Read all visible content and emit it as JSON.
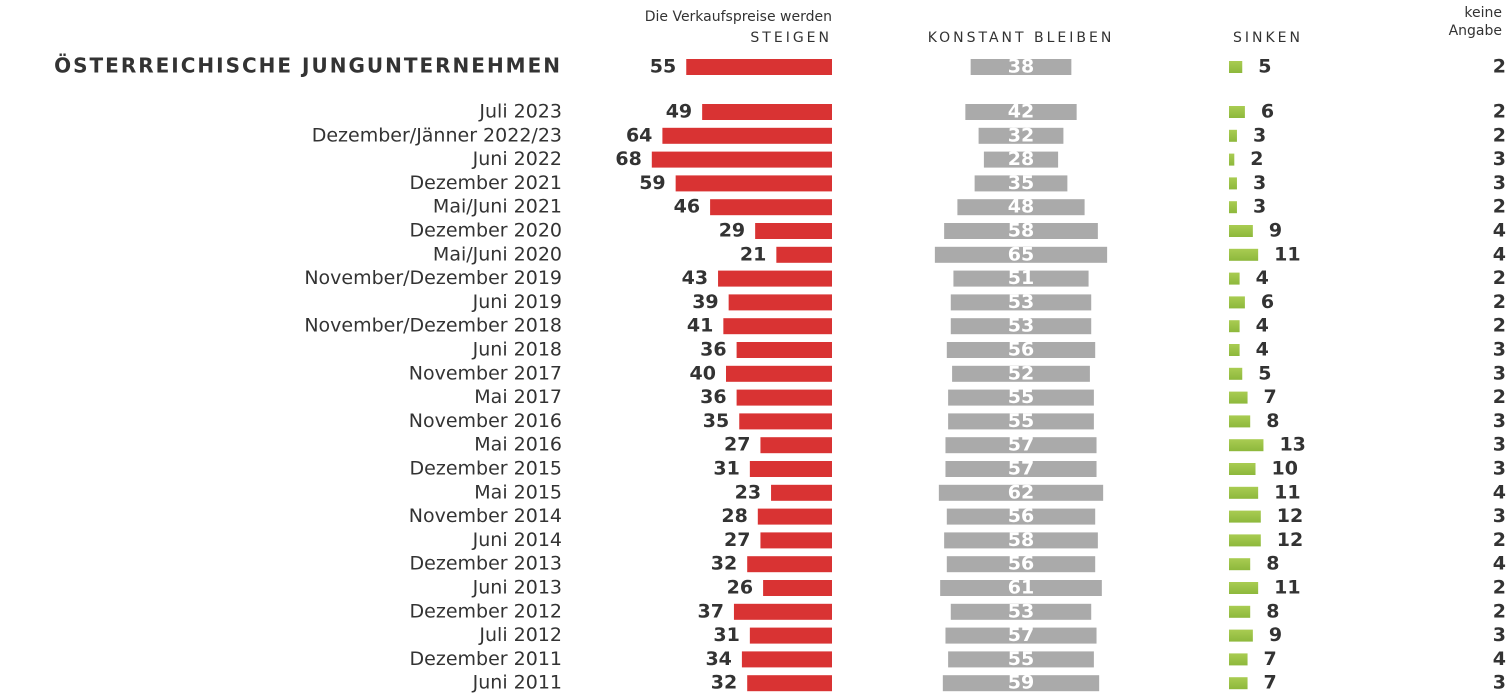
{
  "chart_data": {
    "type": "bar",
    "subtitle": "Die Verkaufspreise werden",
    "categories": [
      "ÖSTERREICHISCHE JUNGUNTERNEHMEN",
      "Juli 2023",
      "Dezember/Jänner 2022/23",
      "Juni 2022",
      "Dezember 2021",
      "Mai/Juni 2021",
      "Dezember 2020",
      "Mai/Juni 2020",
      "November/Dezember 2019",
      "Juni 2019",
      "November/Dezember 2018",
      "Juni 2018",
      "November 2017",
      "Mai 2017",
      "November 2016",
      "Mai 2016",
      "Dezember 2015",
      "Mai 2015",
      "November 2014",
      "Juni 2014",
      "Dezember 2013",
      "Juni 2013",
      "Dezember 2012",
      "Juli 2012",
      "Dezember 2011",
      "Juni 2011"
    ],
    "series": [
      {
        "name": "STEIGEN",
        "color": "#d93333",
        "values": [
          55,
          49,
          64,
          68,
          59,
          46,
          29,
          21,
          43,
          39,
          41,
          36,
          40,
          36,
          35,
          27,
          31,
          23,
          28,
          27,
          32,
          26,
          37,
          31,
          34,
          32
        ]
      },
      {
        "name": "KONSTANT BLEIBEN",
        "color": "#aaaaaa",
        "values": [
          38,
          42,
          32,
          28,
          35,
          48,
          58,
          65,
          51,
          53,
          53,
          56,
          52,
          55,
          55,
          57,
          57,
          62,
          56,
          58,
          56,
          61,
          53,
          57,
          55,
          59
        ]
      },
      {
        "name": "SINKEN",
        "color": "#8db83c",
        "values": [
          5,
          6,
          3,
          2,
          3,
          3,
          9,
          11,
          4,
          6,
          4,
          4,
          5,
          7,
          8,
          13,
          10,
          11,
          12,
          12,
          8,
          11,
          8,
          9,
          7,
          7
        ]
      },
      {
        "name": "keine Angabe",
        "color": "#333333",
        "values": [
          2,
          2,
          2,
          3,
          3,
          2,
          4,
          4,
          2,
          2,
          2,
          3,
          3,
          2,
          3,
          3,
          3,
          4,
          3,
          2,
          4,
          2,
          2,
          3,
          4,
          3
        ]
      }
    ]
  }
}
